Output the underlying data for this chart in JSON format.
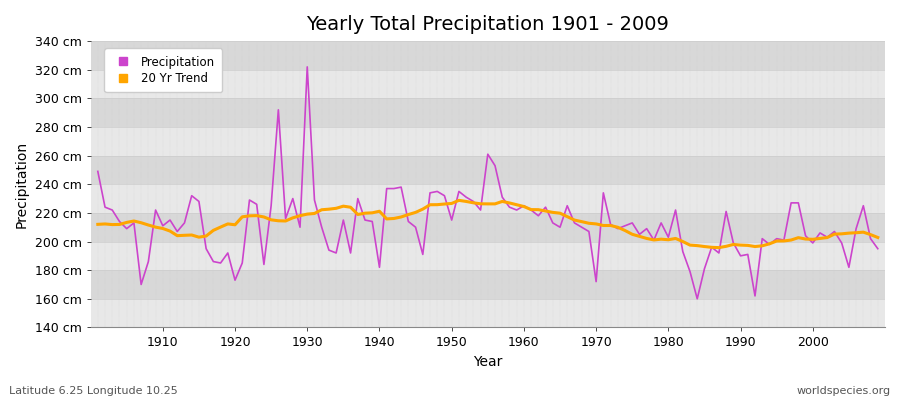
{
  "title": "Yearly Total Precipitation 1901 - 2009",
  "xlabel": "Year",
  "ylabel": "Precipitation",
  "subtitle": "Latitude 6.25 Longitude 10.25",
  "watermark": "worldspecies.org",
  "years": [
    1901,
    1902,
    1903,
    1904,
    1905,
    1906,
    1907,
    1908,
    1909,
    1910,
    1911,
    1912,
    1913,
    1914,
    1915,
    1916,
    1917,
    1918,
    1919,
    1920,
    1921,
    1922,
    1923,
    1924,
    1925,
    1926,
    1927,
    1928,
    1929,
    1930,
    1931,
    1932,
    1933,
    1934,
    1935,
    1936,
    1937,
    1938,
    1939,
    1940,
    1941,
    1942,
    1943,
    1944,
    1945,
    1946,
    1947,
    1948,
    1949,
    1950,
    1951,
    1952,
    1953,
    1954,
    1955,
    1956,
    1957,
    1958,
    1959,
    1960,
    1961,
    1962,
    1963,
    1964,
    1965,
    1966,
    1967,
    1968,
    1969,
    1970,
    1971,
    1972,
    1973,
    1974,
    1975,
    1976,
    1977,
    1978,
    1979,
    1980,
    1981,
    1982,
    1983,
    1984,
    1985,
    1986,
    1987,
    1988,
    1989,
    1990,
    1991,
    1992,
    1993,
    1994,
    1995,
    1996,
    1997,
    1998,
    1999,
    2000,
    2001,
    2002,
    2003,
    2004,
    2005,
    2006,
    2007,
    2008,
    2009
  ],
  "precip": [
    249,
    224,
    222,
    214,
    209,
    213,
    170,
    186,
    222,
    211,
    215,
    207,
    213,
    232,
    228,
    195,
    186,
    185,
    192,
    173,
    185,
    229,
    226,
    184,
    225,
    292,
    216,
    230,
    210,
    322,
    229,
    210,
    194,
    192,
    215,
    192,
    230,
    215,
    214,
    182,
    237,
    237,
    238,
    214,
    210,
    191,
    234,
    235,
    232,
    215,
    235,
    231,
    228,
    222,
    261,
    253,
    231,
    224,
    222,
    225,
    222,
    218,
    224,
    213,
    210,
    225,
    213,
    210,
    207,
    172,
    234,
    212,
    209,
    211,
    213,
    205,
    209,
    201,
    213,
    203,
    222,
    193,
    179,
    160,
    181,
    196,
    192,
    221,
    199,
    190,
    191,
    162,
    202,
    198,
    202,
    201,
    227,
    227,
    204,
    199,
    206,
    203,
    207,
    199,
    182,
    209,
    225,
    202,
    195
  ],
  "ylim": [
    140,
    340
  ],
  "yticks": [
    140,
    160,
    180,
    200,
    220,
    240,
    260,
    280,
    300,
    320,
    340
  ],
  "fig_bg_color": "#ffffff",
  "plot_bg_color": "#e8e8e8",
  "plot_bg_alt_color": "#d8d8d8",
  "precip_color": "#cc44cc",
  "trend_color": "#FFA500",
  "grid_color": "#cccccc",
  "title_fontsize": 14,
  "label_fontsize": 10,
  "tick_fontsize": 9,
  "trend_window": 20
}
